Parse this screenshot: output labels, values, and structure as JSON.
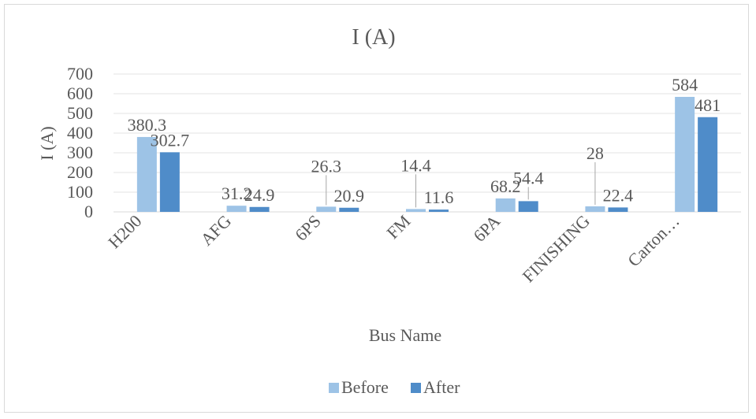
{
  "chart_data": {
    "type": "bar",
    "title": "I (A)",
    "xlabel": "Bus Name",
    "ylabel": "I (A)",
    "ylim": [
      0,
      700
    ],
    "yticks": [
      0,
      100,
      200,
      300,
      400,
      500,
      600,
      700
    ],
    "grid": true,
    "legend_position": "bottom",
    "categories": [
      "H200",
      "AFG",
      "6PS",
      "FM",
      "6PA",
      "FINISHING",
      "Carton…"
    ],
    "series": [
      {
        "name": "Before",
        "color": "#9dc3e6",
        "values": [
          380.3,
          31.2,
          26.3,
          14.4,
          68.2,
          28,
          584
        ]
      },
      {
        "name": "After",
        "color": "#4f8cc9",
        "values": [
          302.7,
          24.9,
          20.9,
          11.6,
          54.4,
          22.4,
          481
        ]
      }
    ],
    "data_labels": {
      "Before": [
        "380.3",
        "31.2",
        "26.3",
        "14.4",
        "68.2",
        "28",
        "584"
      ],
      "After": [
        "302.7",
        "24.9",
        "20.9",
        "11.6",
        "54.4",
        "22.4",
        "481"
      ]
    }
  }
}
